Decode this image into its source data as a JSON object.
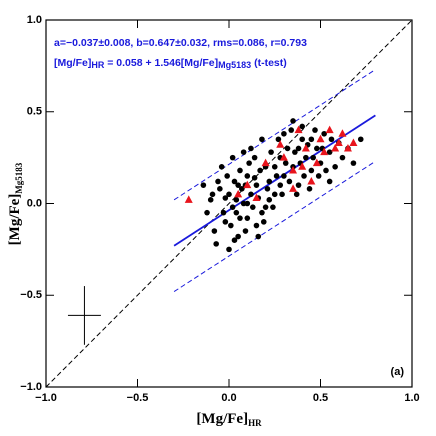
{
  "chart_data": {
    "type": "scatter",
    "xlabel": {
      "text": "[Mg/Fe]",
      "sub": "HR"
    },
    "ylabel": {
      "text": "[Mg/Fe]",
      "sub": "Mg5183"
    },
    "annotations": [
      "a=−0.037±0.008, b=0.647±0.032, rms=0.086, r=0.793",
      [
        "[Mg/Fe]",
        "HR",
        " = 0.058 + 1.546[Mg/Fe]",
        "Mg5183",
        " (t-test)"
      ]
    ],
    "panel_label": "(a)",
    "xlim": [
      -1.0,
      1.0
    ],
    "ylim": [
      -1.0,
      1.0
    ],
    "xticks": [
      {
        "value": -1.0,
        "label": "−1.0"
      },
      {
        "value": -0.5,
        "label": "−0.5"
      },
      {
        "value": 0.0,
        "label": "0.0"
      },
      {
        "value": 0.5,
        "label": "0.5"
      },
      {
        "value": 1.0,
        "label": "1.0"
      }
    ],
    "yticks": [
      {
        "value": -1.0,
        "label": "−1.0"
      },
      {
        "value": -0.5,
        "label": "−0.5"
      },
      {
        "value": 0.0,
        "label": "0.0"
      },
      {
        "value": 0.5,
        "label": "0.5"
      },
      {
        "value": 1.0,
        "label": "1.0"
      }
    ],
    "series": [
      {
        "color": "#000000",
        "marker": "circle",
        "x": [
          0.0,
          0.02,
          0.05,
          -0.02,
          0.08,
          0.1,
          -0.05,
          0.03,
          0.12,
          0.15,
          0.18,
          0.2,
          0.22,
          0.25,
          0.28,
          0.3,
          0.32,
          0.35,
          0.38,
          0.4,
          0.42,
          0.45,
          0.48,
          0.5,
          0.52,
          0.55,
          0.58,
          0.6,
          0.65,
          0.72,
          -0.1,
          -0.12,
          -0.08,
          -0.06,
          -0.03,
          -0.01,
          0.01,
          0.04,
          0.06,
          0.07,
          0.09,
          0.11,
          0.13,
          0.14,
          0.16,
          0.17,
          0.19,
          0.21,
          0.23,
          0.24,
          0.26,
          0.27,
          0.29,
          0.31,
          0.33,
          0.34,
          0.36,
          0.37,
          0.39,
          0.41,
          0.43,
          0.44,
          0.46,
          0.47,
          0.49,
          0.51,
          0.53,
          0.56,
          0.62,
          0.68,
          -0.14,
          -0.07,
          -0.04,
          0.0,
          0.02,
          0.05,
          0.08,
          0.1,
          0.12,
          0.15,
          0.18,
          0.2,
          0.03,
          -0.02,
          0.06,
          0.09,
          0.14,
          0.16,
          0.22,
          0.28,
          0.35,
          0.4,
          0.38,
          0.3,
          0.25,
          0.1,
          0.04,
          -0.09,
          0.45,
          0.55
        ],
        "values": [
          0.05,
          -0.02,
          0.1,
          -0.1,
          0.0,
          0.15,
          0.08,
          -0.2,
          0.05,
          0.1,
          -0.05,
          0.2,
          0.12,
          0.05,
          0.25,
          0.15,
          0.3,
          0.2,
          0.1,
          0.35,
          0.25,
          0.18,
          0.3,
          0.22,
          0.38,
          0.28,
          0.2,
          0.33,
          0.3,
          0.35,
          0.02,
          -0.05,
          -0.15,
          0.12,
          -0.05,
          0.15,
          -0.12,
          0.02,
          -0.08,
          0.08,
          -0.15,
          0.22,
          -0.02,
          0.14,
          0.03,
          0.18,
          -0.1,
          0.08,
          0.28,
          -0.02,
          0.15,
          0.35,
          0.05,
          0.22,
          0.12,
          0.4,
          0.28,
          0.05,
          0.22,
          0.15,
          0.32,
          0.08,
          0.25,
          0.4,
          0.15,
          0.3,
          0.18,
          0.35,
          0.25,
          0.22,
          0.1,
          -0.22,
          0.2,
          -0.25,
          0.25,
          -0.18,
          0.28,
          -0.08,
          0.3,
          -0.12,
          0.35,
          -0.02,
          0.12,
          0.03,
          0.18,
          0.1,
          0.25,
          -0.18,
          0.02,
          0.1,
          0.45,
          0.42,
          0.3,
          0.38,
          0.2,
          0.0,
          -0.05,
          0.05,
          0.35,
          0.12
        ]
      },
      {
        "color": "#e8141c",
        "marker": "triangle",
        "x": [
          -0.22,
          0.3,
          0.35,
          0.4,
          0.42,
          0.45,
          0.48,
          0.5,
          0.52,
          0.55,
          0.58,
          0.6,
          0.62,
          0.65,
          0.68,
          0.35,
          0.28,
          0.2,
          0.1,
          0.05,
          0.38,
          0.15
        ],
        "values": [
          0.02,
          0.25,
          0.18,
          0.2,
          0.3,
          0.12,
          0.22,
          0.35,
          0.28,
          0.4,
          0.3,
          0.33,
          0.38,
          0.3,
          0.33,
          0.08,
          0.32,
          0.22,
          0.1,
          0.05,
          0.4,
          0.03
        ]
      }
    ],
    "lines": [
      {
        "color": "#000000",
        "dashed": true,
        "x": [
          -1.0,
          1.0
        ],
        "y": [
          -1.0,
          1.0
        ]
      },
      {
        "color": "#1a1adc",
        "dashed": false,
        "x": [
          -0.3,
          0.8
        ],
        "y": [
          -0.23,
          0.48
        ]
      },
      {
        "color": "#1a1adc",
        "dashed": true,
        "x": [
          -0.3,
          0.8
        ],
        "y": [
          0.02,
          0.73
        ]
      },
      {
        "color": "#1a1adc",
        "dashed": true,
        "x": [
          -0.3,
          0.8
        ],
        "y": [
          -0.48,
          0.23
        ]
      }
    ],
    "error_cross": {
      "x": -0.79,
      "y": -0.61,
      "xerr": 0.09,
      "yerr": 0.16
    }
  }
}
